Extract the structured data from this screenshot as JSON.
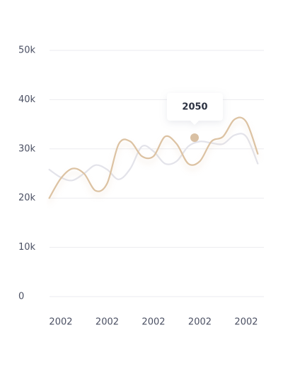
{
  "chart_data": {
    "type": "line",
    "categories": [
      null,
      "2002",
      null,
      null,
      null,
      "2002",
      null,
      null,
      null,
      "2002",
      null,
      null,
      null,
      "2002",
      null,
      null,
      null,
      "2002",
      null
    ],
    "series": [
      {
        "color": "#dcc2a2",
        "values": [
          20000,
          24000,
          26000,
          25000,
          21500,
          23000,
          31000,
          31500,
          28500,
          28500,
          32500,
          31000,
          27000,
          27500,
          31500,
          32500,
          36000,
          35500,
          29000
        ]
      },
      {
        "color": "#e3e3ea",
        "values": [
          25800,
          24200,
          23600,
          25000,
          26700,
          25800,
          23800,
          26000,
          30500,
          29500,
          27000,
          27500,
          30500,
          31500,
          31200,
          31000,
          32800,
          32500,
          27000
        ]
      }
    ],
    "ylim": [
      0,
      50000
    ],
    "yticks": [
      0,
      {
        "value": 10000,
        "label": "10k"
      },
      {
        "value": 20000,
        "label": "20k"
      },
      {
        "value": 30000,
        "label": "30k"
      },
      {
        "value": 40000,
        "label": "40k"
      },
      {
        "value": 50000,
        "label": "50k"
      }
    ],
    "grid": true,
    "tooltip": {
      "label": "2050"
    }
  }
}
